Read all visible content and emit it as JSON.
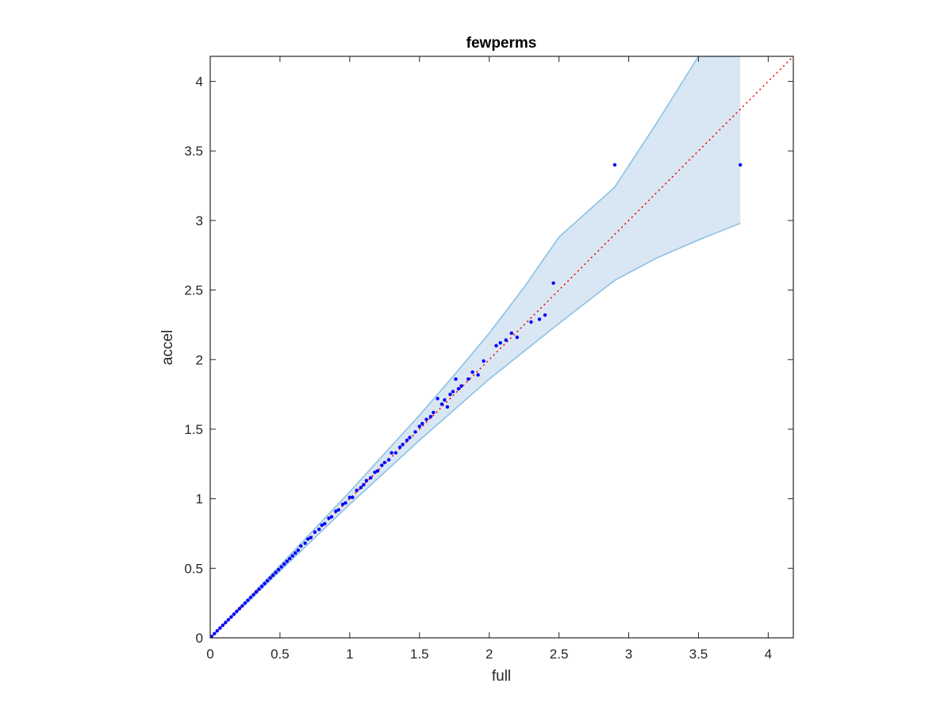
{
  "chart_data": {
    "type": "scatter",
    "title": "fewperms",
    "xlabel": "full",
    "ylabel": "accel",
    "xlim": [
      0,
      4.18
    ],
    "ylim": [
      0,
      4.18
    ],
    "xticks": [
      "0",
      "0.5",
      "1",
      "1.5",
      "2",
      "2.5",
      "3",
      "3.5",
      "4"
    ],
    "yticks": [
      "0",
      "0.5",
      "1",
      "1.5",
      "2",
      "2.5",
      "3",
      "3.5",
      "4"
    ],
    "grid": false,
    "box": true,
    "reference_line": {
      "style": "dotted",
      "color": "#ff0000",
      "from": [
        0,
        0
      ],
      "to": [
        4.18,
        4.18
      ]
    },
    "confidence_band": {
      "fill_color": "#d8e7f3",
      "edge_color": "#8cc1e4",
      "upper": [
        [
          0,
          0
        ],
        [
          0.5,
          0.52
        ],
        [
          1,
          1.05
        ],
        [
          1.5,
          1.6
        ],
        [
          1.75,
          1.89
        ],
        [
          2.0,
          2.19
        ],
        [
          2.25,
          2.52
        ],
        [
          2.5,
          2.88
        ],
        [
          2.9,
          3.24
        ],
        [
          3.2,
          3.7
        ],
        [
          3.5,
          4.18
        ],
        [
          3.8,
          4.18
        ]
      ],
      "lower": [
        [
          0,
          0
        ],
        [
          0.5,
          0.48
        ],
        [
          1,
          0.96
        ],
        [
          1.5,
          1.42
        ],
        [
          1.75,
          1.64
        ],
        [
          2.0,
          1.86
        ],
        [
          2.25,
          2.06
        ],
        [
          2.5,
          2.26
        ],
        [
          2.9,
          2.57
        ],
        [
          3.2,
          2.73
        ],
        [
          3.5,
          2.86
        ],
        [
          3.8,
          2.98
        ]
      ]
    },
    "series": [
      {
        "color": "#0000ff",
        "points": [
          [
            0.01,
            0.01
          ],
          [
            0.03,
            0.03
          ],
          [
            0.05,
            0.05
          ],
          [
            0.07,
            0.07
          ],
          [
            0.09,
            0.09
          ],
          [
            0.11,
            0.11
          ],
          [
            0.13,
            0.13
          ],
          [
            0.15,
            0.15
          ],
          [
            0.17,
            0.17
          ],
          [
            0.19,
            0.19
          ],
          [
            0.21,
            0.21
          ],
          [
            0.23,
            0.23
          ],
          [
            0.25,
            0.25
          ],
          [
            0.27,
            0.27
          ],
          [
            0.29,
            0.29
          ],
          [
            0.31,
            0.31
          ],
          [
            0.33,
            0.33
          ],
          [
            0.35,
            0.35
          ],
          [
            0.37,
            0.37
          ],
          [
            0.39,
            0.39
          ],
          [
            0.41,
            0.41
          ],
          [
            0.43,
            0.43
          ],
          [
            0.45,
            0.45
          ],
          [
            0.47,
            0.47
          ],
          [
            0.49,
            0.49
          ],
          [
            0.51,
            0.51
          ],
          [
            0.53,
            0.53
          ],
          [
            0.55,
            0.55
          ],
          [
            0.57,
            0.57
          ],
          [
            0.59,
            0.59
          ],
          [
            0.61,
            0.61
          ],
          [
            0.63,
            0.63
          ],
          [
            0.65,
            0.66
          ],
          [
            0.68,
            0.68
          ],
          [
            0.7,
            0.71
          ],
          [
            0.72,
            0.72
          ],
          [
            0.75,
            0.76
          ],
          [
            0.78,
            0.78
          ],
          [
            0.8,
            0.81
          ],
          [
            0.82,
            0.82
          ],
          [
            0.85,
            0.86
          ],
          [
            0.87,
            0.87
          ],
          [
            0.9,
            0.91
          ],
          [
            0.92,
            0.92
          ],
          [
            0.95,
            0.96
          ],
          [
            0.97,
            0.97
          ],
          [
            1.0,
            1.01
          ],
          [
            1.02,
            1.01
          ],
          [
            1.05,
            1.06
          ],
          [
            1.08,
            1.08
          ],
          [
            1.1,
            1.1
          ],
          [
            1.12,
            1.13
          ],
          [
            1.15,
            1.15
          ],
          [
            1.18,
            1.19
          ],
          [
            1.2,
            1.2
          ],
          [
            1.23,
            1.24
          ],
          [
            1.25,
            1.26
          ],
          [
            1.28,
            1.28
          ],
          [
            1.3,
            1.33
          ],
          [
            1.33,
            1.33
          ],
          [
            1.36,
            1.37
          ],
          [
            1.38,
            1.39
          ],
          [
            1.41,
            1.42
          ],
          [
            1.43,
            1.44
          ],
          [
            1.47,
            1.48
          ],
          [
            1.5,
            1.52
          ],
          [
            1.52,
            1.54
          ],
          [
            1.55,
            1.57
          ],
          [
            1.58,
            1.59
          ],
          [
            1.6,
            1.62
          ],
          [
            1.63,
            1.72
          ],
          [
            1.66,
            1.68
          ],
          [
            1.68,
            1.71
          ],
          [
            1.7,
            1.66
          ],
          [
            1.72,
            1.75
          ],
          [
            1.74,
            1.77
          ],
          [
            1.76,
            1.86
          ],
          [
            1.78,
            1.79
          ],
          [
            1.8,
            1.81
          ],
          [
            1.85,
            1.86
          ],
          [
            1.88,
            1.91
          ],
          [
            1.92,
            1.89
          ],
          [
            1.96,
            1.99
          ],
          [
            2.05,
            2.1
          ],
          [
            2.08,
            2.12
          ],
          [
            2.12,
            2.14
          ],
          [
            2.16,
            2.19
          ],
          [
            2.2,
            2.16
          ],
          [
            2.3,
            2.27
          ],
          [
            2.36,
            2.29
          ],
          [
            2.4,
            2.32
          ],
          [
            2.46,
            2.55
          ],
          [
            2.9,
            3.4
          ],
          [
            3.8,
            3.4
          ]
        ]
      }
    ]
  }
}
